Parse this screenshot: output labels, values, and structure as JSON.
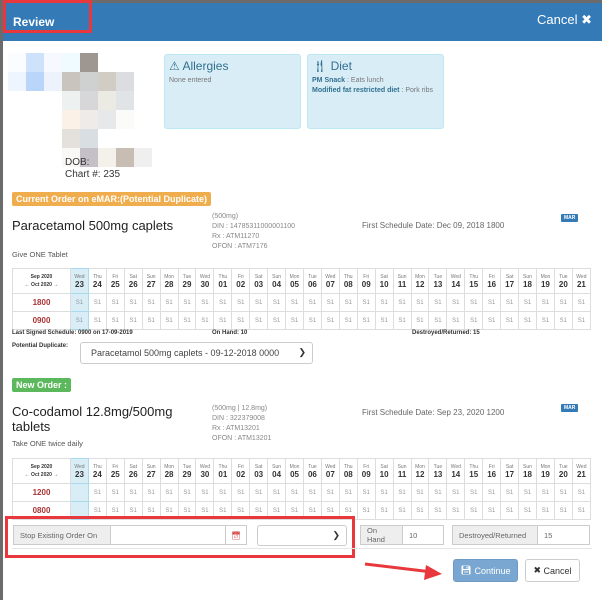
{
  "header": {
    "title": "Review",
    "cancel_label": "Cancel",
    "cancel_icon": "times-icon"
  },
  "patient": {
    "dob_label": "DOB:",
    "chart_label": "Chart #: 235"
  },
  "allergies": {
    "title": "Allergies",
    "icon": "warning-icon",
    "text": "None entered"
  },
  "diet": {
    "title": "Diet",
    "icon": "cutlery-icon",
    "items": [
      {
        "label": "PM Snack",
        "value": " : Eats lunch"
      },
      {
        "label": "Modified fat restricted diet",
        "value": " : Pork ribs"
      }
    ]
  },
  "colors": {
    "primary": "#337ab7",
    "warning": "#f0ad4e",
    "success": "#5cb85c",
    "highlight": "#e8383d"
  },
  "calendar": {
    "month_top": "Sep 2020",
    "month_nav": "← Oct 2020 →",
    "days": [
      [
        "Wed",
        "23"
      ],
      [
        "Thu",
        "24"
      ],
      [
        "Fri",
        "25"
      ],
      [
        "Sat",
        "26"
      ],
      [
        "Sun",
        "27"
      ],
      [
        "Mon",
        "28"
      ],
      [
        "Tue",
        "29"
      ],
      [
        "Wed",
        "30"
      ],
      [
        "Thu",
        "01"
      ],
      [
        "Fri",
        "02"
      ],
      [
        "Sat",
        "03"
      ],
      [
        "Sun",
        "04"
      ],
      [
        "Mon",
        "05"
      ],
      [
        "Tue",
        "06"
      ],
      [
        "Wed",
        "07"
      ],
      [
        "Thu",
        "08"
      ],
      [
        "Fri",
        "09"
      ],
      [
        "Sat",
        "10"
      ],
      [
        "Sun",
        "11"
      ],
      [
        "Mon",
        "12"
      ],
      [
        "Tue",
        "13"
      ],
      [
        "Wed",
        "14"
      ],
      [
        "Thu",
        "15"
      ],
      [
        "Fri",
        "16"
      ],
      [
        "Sat",
        "17"
      ],
      [
        "Sun",
        "18"
      ],
      [
        "Mon",
        "19"
      ],
      [
        "Tue",
        "20"
      ],
      [
        "Wed",
        "21"
      ]
    ]
  },
  "current": {
    "badge": "Current Order on eMAR:(Potential Duplicate)",
    "name": "Paracetamol 500mg caplets",
    "strength": "(500mg)",
    "din": "DIN : 14785311000001100",
    "rx": "Rx : ATM11270",
    "ofon": "OFON : ATM7176",
    "first_schedule": "First Schedule Date: Dec 09, 2018 1800",
    "mar": "MAR",
    "instruction": "Give ONE Tablet",
    "rows": [
      {
        "time": "1800",
        "first": "S1",
        "cell": "S1"
      },
      {
        "time": "0900",
        "first": "S1",
        "cell": "S1"
      }
    ],
    "last_signed": "Last Signed Schedule: 0900 on 17-09-2019",
    "on_hand": "On Hand: 10",
    "destroyed": "Destroyed/Returned: 15",
    "dup_label": "Potential Duplicate:",
    "dup_value": "Paracetamol 500mg caplets - 09-12-2018 0000"
  },
  "new": {
    "badge": "New Order :",
    "name": "Co-codamol 12.8mg/500mg tablets",
    "strength": "(500mg | 12.8mg)",
    "din": "DIN : 322379008",
    "rx": "Rx : ATM13201",
    "ofon": "OFON : ATM13201",
    "first_schedule": "First Schedule Date: Sep 23, 2020 1200",
    "mar": "MAR",
    "instruction": "Take ONE twice daily",
    "rows": [
      {
        "time": "1200",
        "first": "",
        "cell": "S1"
      },
      {
        "time": "0800",
        "first": "",
        "cell": "S1"
      }
    ]
  },
  "stop": {
    "label": "Stop Existing Order On",
    "date_value": "",
    "time_value": "",
    "on_hand_label": "On Hand",
    "on_hand_value": "10",
    "destroyed_label": "Destroyed/Returned",
    "destroyed_value": "15"
  },
  "footer": {
    "continue_label": "Continue",
    "cancel_label": "Cancel"
  }
}
